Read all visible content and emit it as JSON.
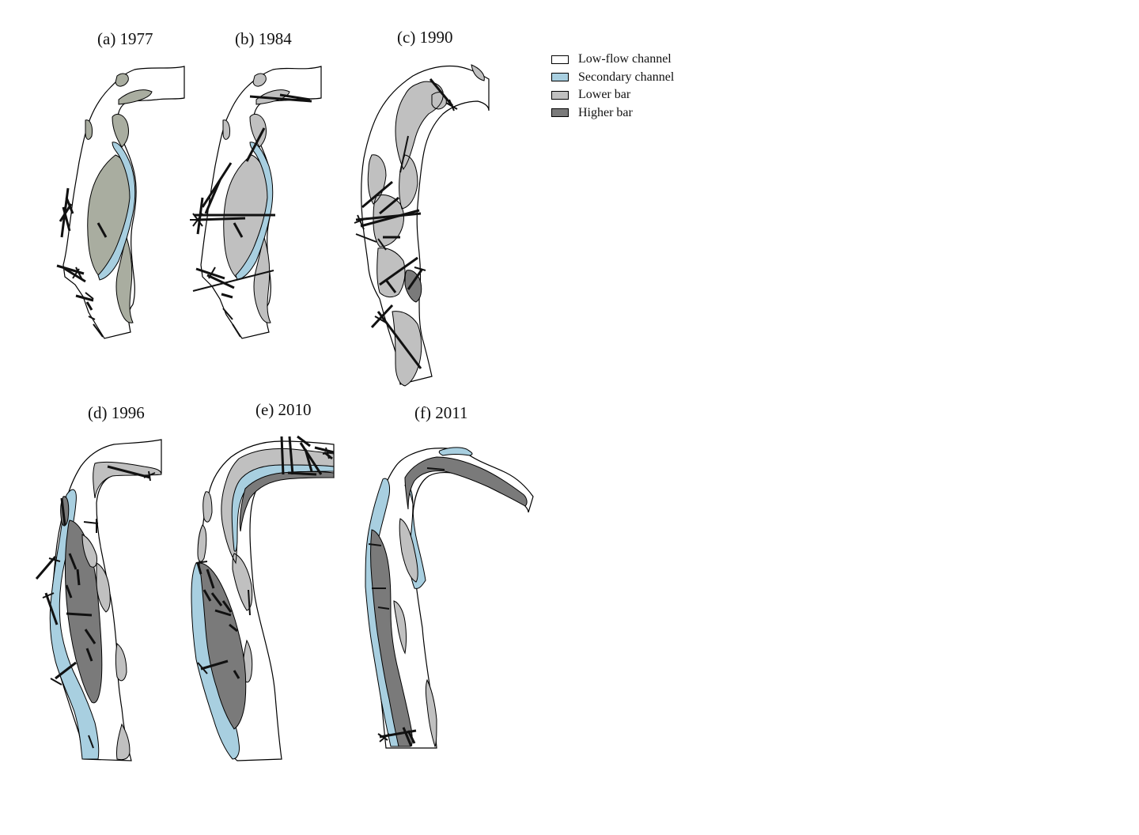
{
  "panels": [
    {
      "id": "a",
      "label": "(a) 1977"
    },
    {
      "id": "b",
      "label": "(b) 1984"
    },
    {
      "id": "c",
      "label": "(c) 1990"
    },
    {
      "id": "d",
      "label": "(d) 1996"
    },
    {
      "id": "e",
      "label": "(e) 2010"
    },
    {
      "id": "f",
      "label": "(f) 2011"
    }
  ],
  "legend": [
    {
      "label": "Low-flow channel",
      "color": "#ffffff"
    },
    {
      "label": "Secondary channel",
      "color": "#a8cfe0"
    },
    {
      "label": "Lower bar",
      "color": "#c0c0c0"
    },
    {
      "label": "Higher bar",
      "color": "#7a7a7a"
    }
  ],
  "colors": {
    "low_flow_channel": "#ffffff",
    "secondary_channel": "#a8cfe0",
    "lower_bar": "#c0c0c0",
    "lower_bar_1977": "#a9ada0",
    "higher_bar": "#7a7a7a",
    "transect": "#111111"
  }
}
